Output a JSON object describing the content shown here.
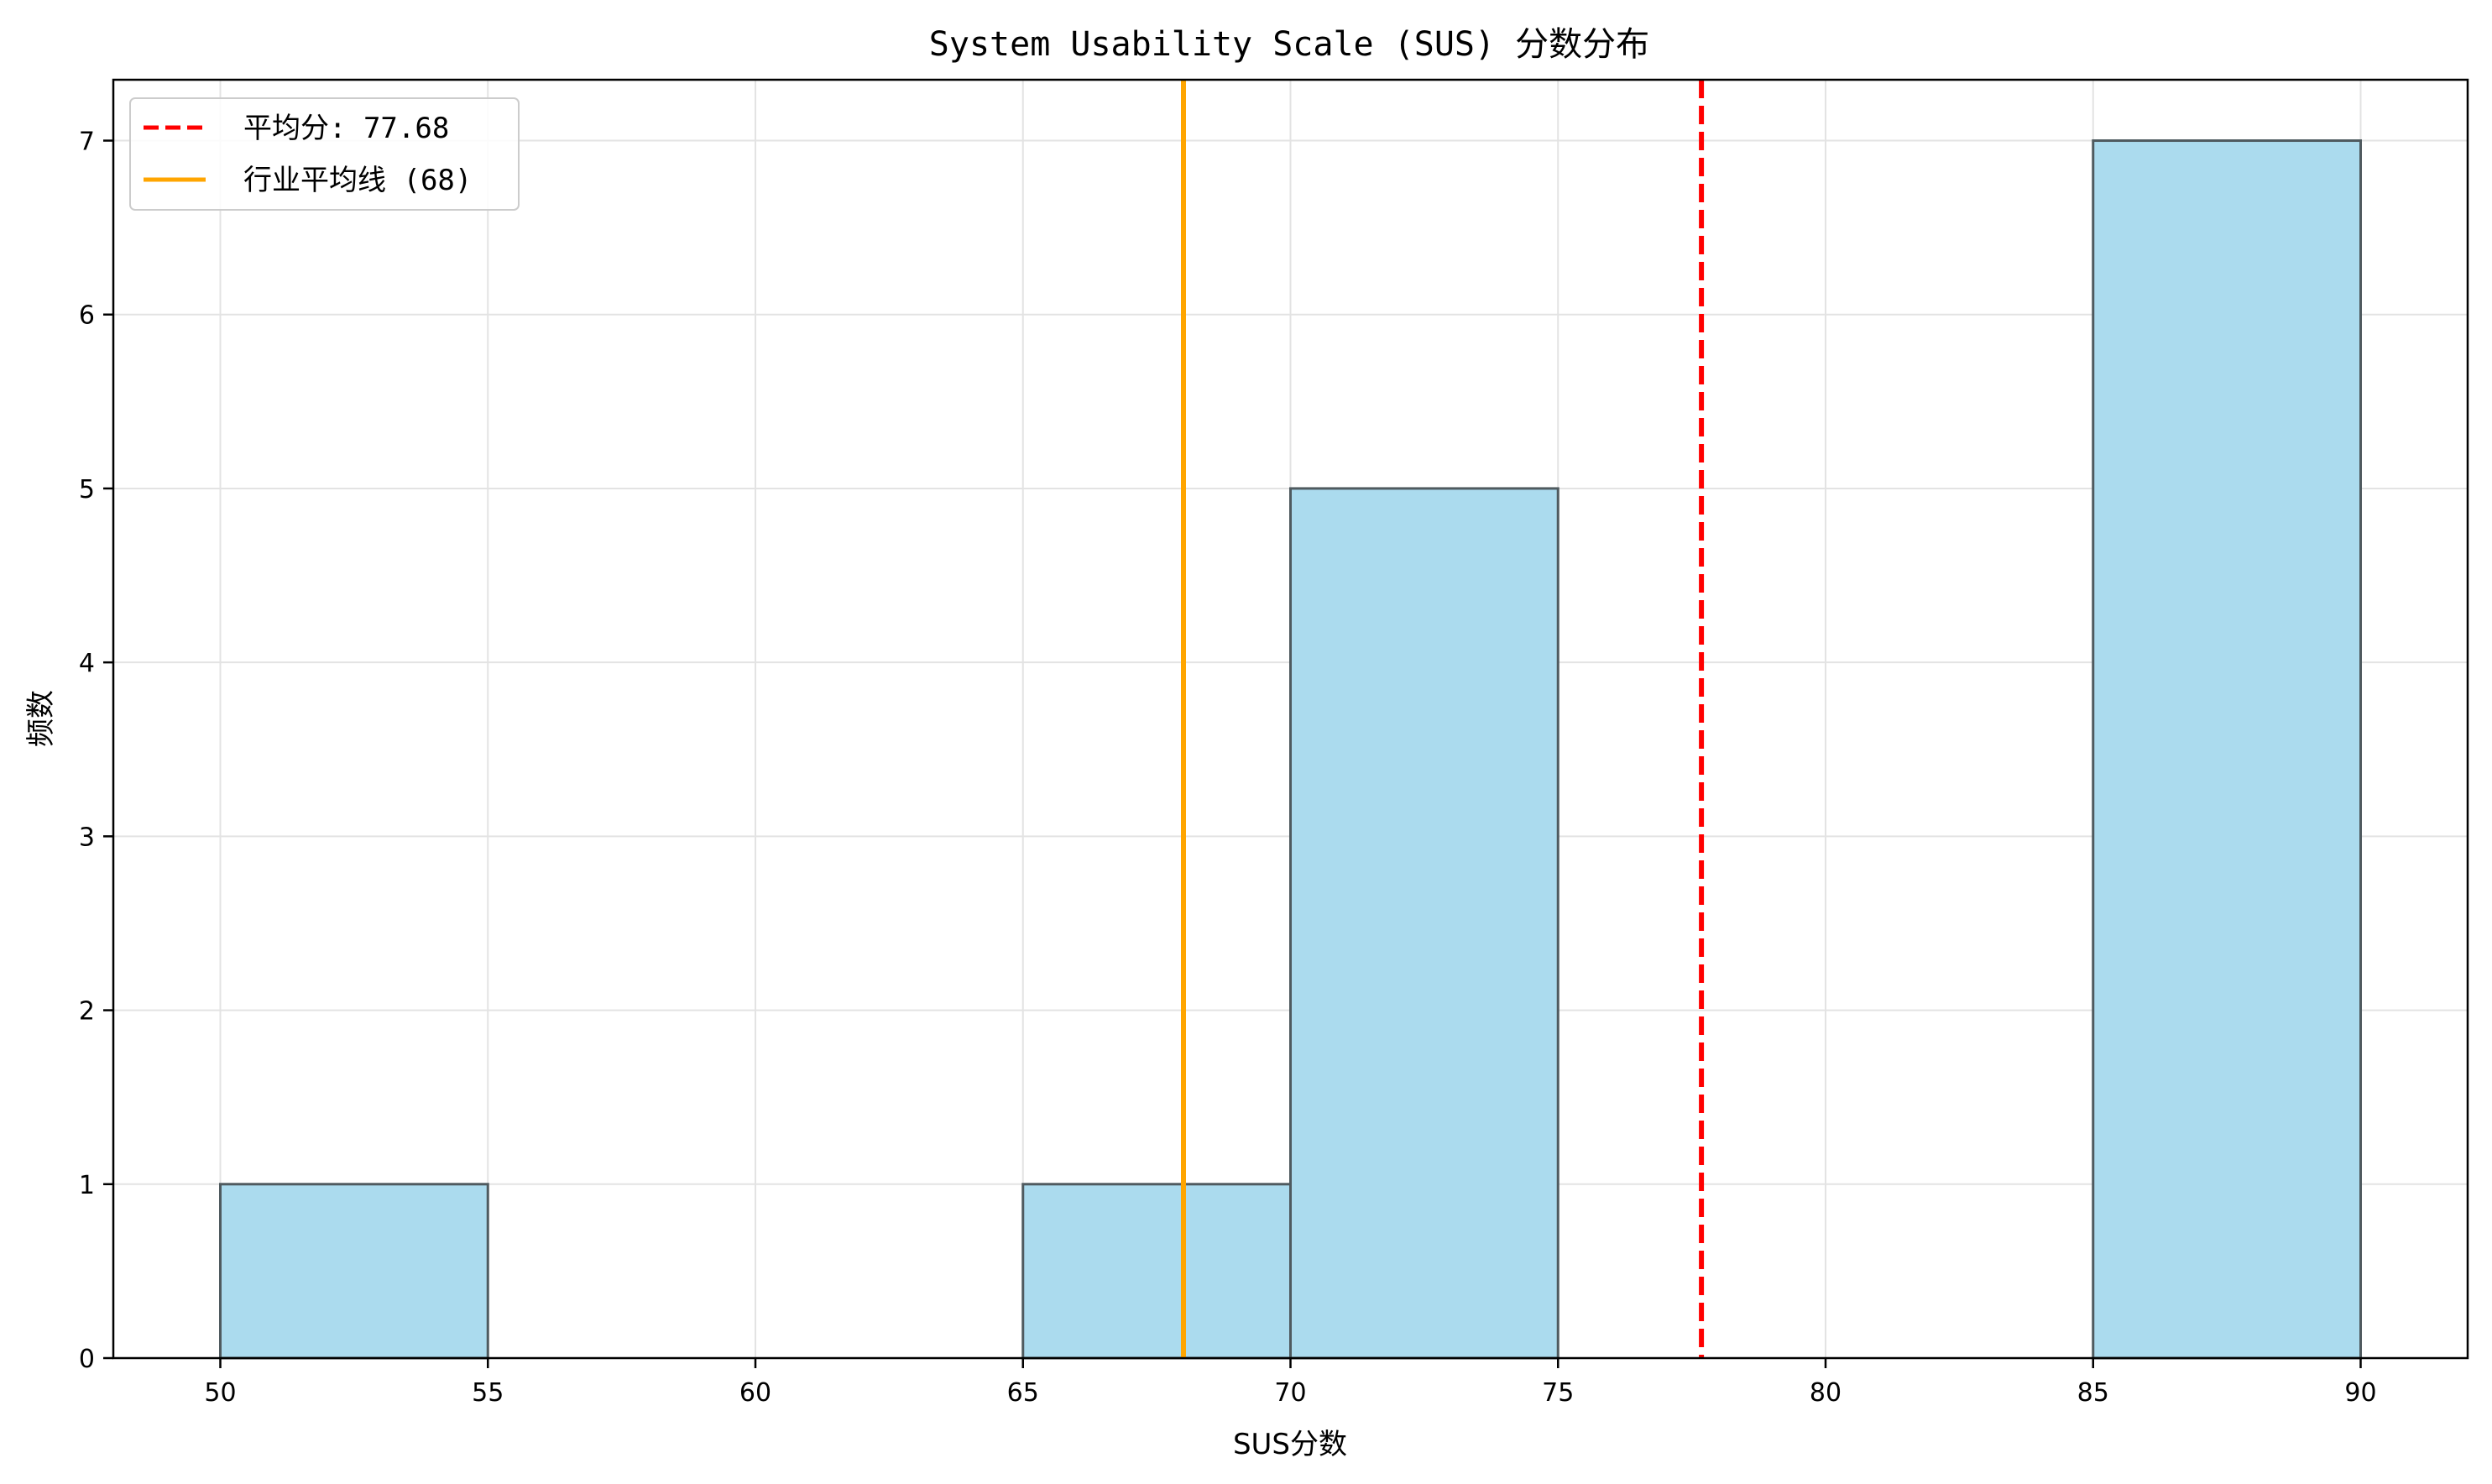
{
  "chart_data": {
    "type": "bar",
    "title": "System Usability Scale (SUS) 分数分布",
    "xlabel": "SUS分数",
    "ylabel": "频数",
    "xlim": [
      48,
      92
    ],
    "ylim": [
      0,
      7.35
    ],
    "xticks": [
      50,
      55,
      60,
      65,
      70,
      75,
      80,
      85,
      90
    ],
    "yticks": [
      0,
      1,
      2,
      3,
      4,
      5,
      6,
      7
    ],
    "grid": true,
    "bins": [
      {
        "start": 50,
        "end": 55,
        "count": 1
      },
      {
        "start": 55,
        "end": 60,
        "count": 0
      },
      {
        "start": 60,
        "end": 65,
        "count": 0
      },
      {
        "start": 65,
        "end": 70,
        "count": 1
      },
      {
        "start": 70,
        "end": 75,
        "count": 5
      },
      {
        "start": 75,
        "end": 80,
        "count": 0
      },
      {
        "start": 80,
        "end": 85,
        "count": 0
      },
      {
        "start": 85,
        "end": 90,
        "count": 7
      }
    ],
    "bar_color": "#abdbee",
    "bar_edge_color": "#4f5a5f",
    "reference_lines": [
      {
        "name": "mean",
        "x": 77.68,
        "label": "平均分: 77.68",
        "color": "#ff0000",
        "style": "dashed"
      },
      {
        "name": "industry-average",
        "x": 68,
        "label": "行业平均线 (68)",
        "color": "#ffa500",
        "style": "solid"
      }
    ],
    "legend_position": "top-left"
  }
}
